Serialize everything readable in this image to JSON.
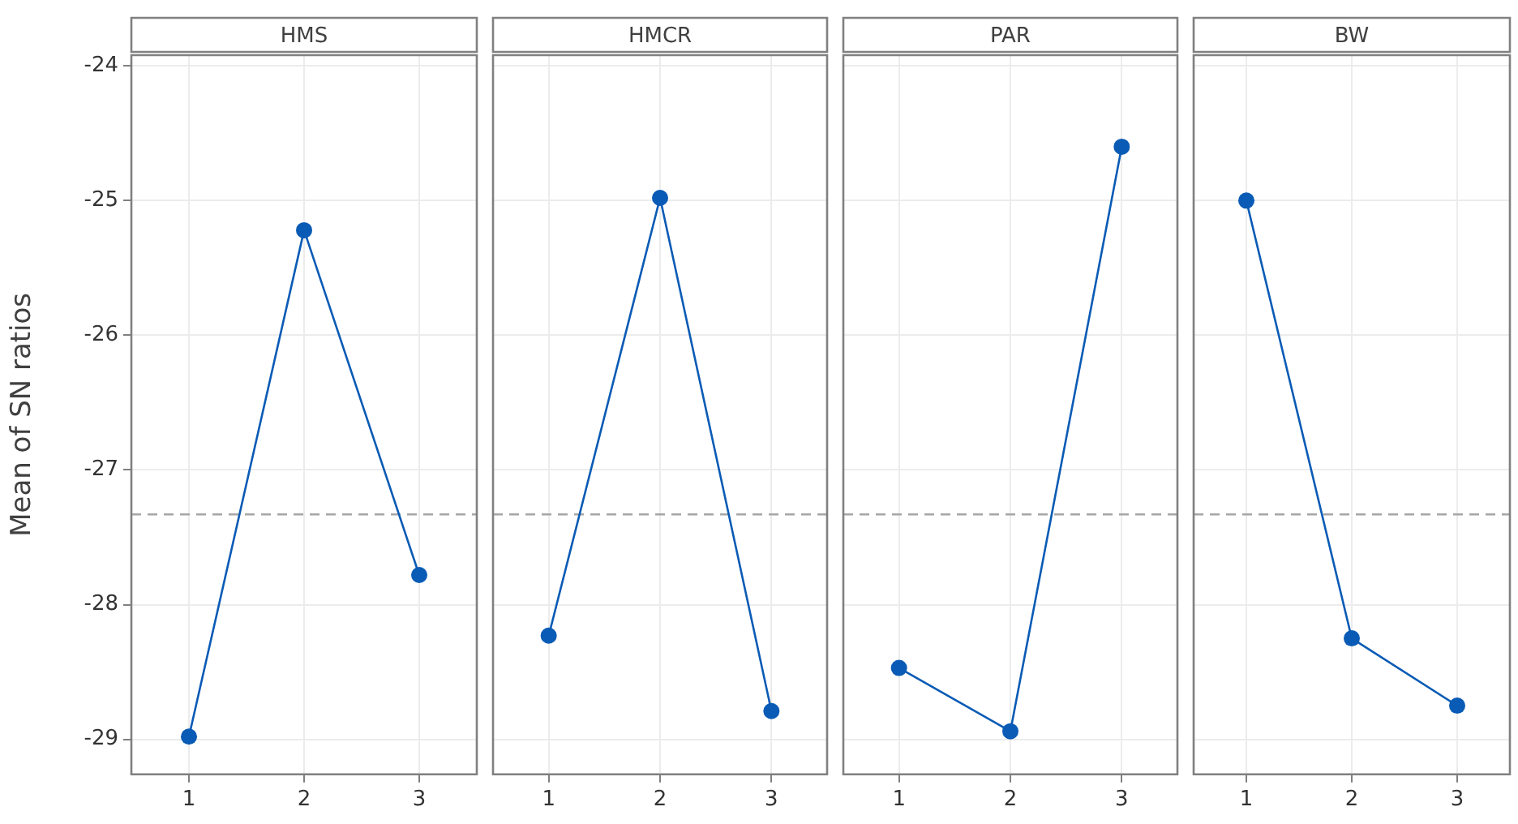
{
  "chart_data": [
    {
      "type": "line",
      "title": "HMS",
      "ylabel": "Mean of SN ratios",
      "categories": [
        "1",
        "2",
        "3"
      ],
      "series": [
        {
          "color": "#0a5bb5",
          "values": [
            -28.98,
            -25.22,
            -27.78
          ]
        }
      ],
      "ylim": [
        -29.26,
        -23.92
      ],
      "yticks": [
        -29,
        -28,
        -27,
        -26,
        -25,
        -24
      ],
      "grid": true,
      "marker": "circle",
      "line_style": "solid",
      "ref_lines": [
        {
          "axis": "y",
          "value": -27.33,
          "color": "#a6a6a6",
          "line_style": "dashed"
        }
      ]
    },
    {
      "type": "line",
      "title": "HMCR",
      "categories": [
        "1",
        "2",
        "3"
      ],
      "series": [
        {
          "color": "#0a5bb5",
          "values": [
            -28.23,
            -24.98,
            -28.79
          ]
        }
      ],
      "ylim": [
        -29.26,
        -23.92
      ],
      "yticks": [
        -29,
        -28,
        -27,
        -26,
        -25,
        -24
      ],
      "grid": true,
      "marker": "circle",
      "line_style": "solid",
      "tick_labels": "x",
      "ref_lines": [
        {
          "axis": "y",
          "value": -27.33,
          "color": "#a6a6a6",
          "line_style": "dashed"
        }
      ]
    },
    {
      "type": "line",
      "title": "PAR",
      "categories": [
        "1",
        "2",
        "3"
      ],
      "series": [
        {
          "color": "#0a5bb5",
          "values": [
            -28.47,
            -28.94,
            -24.6
          ]
        }
      ],
      "ylim": [
        -29.26,
        -23.92
      ],
      "yticks": [
        -29,
        -28,
        -27,
        -26,
        -25,
        -24
      ],
      "grid": true,
      "marker": "circle",
      "line_style": "solid",
      "tick_labels": "x",
      "ref_lines": [
        {
          "axis": "y",
          "value": -27.33,
          "color": "#a6a6a6",
          "line_style": "dashed"
        }
      ]
    },
    {
      "type": "line",
      "title": "BW",
      "categories": [
        "1",
        "2",
        "3"
      ],
      "series": [
        {
          "color": "#0a5bb5",
          "values": [
            -25.0,
            -28.25,
            -28.75
          ]
        }
      ],
      "ylim": [
        -29.26,
        -23.92
      ],
      "yticks": [
        -29,
        -28,
        -27,
        -26,
        -25,
        -24
      ],
      "grid": true,
      "marker": "circle",
      "line_style": "solid",
      "tick_labels": "x",
      "ref_lines": [
        {
          "axis": "y",
          "value": -27.33,
          "color": "#a6a6a6",
          "line_style": "dashed"
        }
      ]
    }
  ]
}
